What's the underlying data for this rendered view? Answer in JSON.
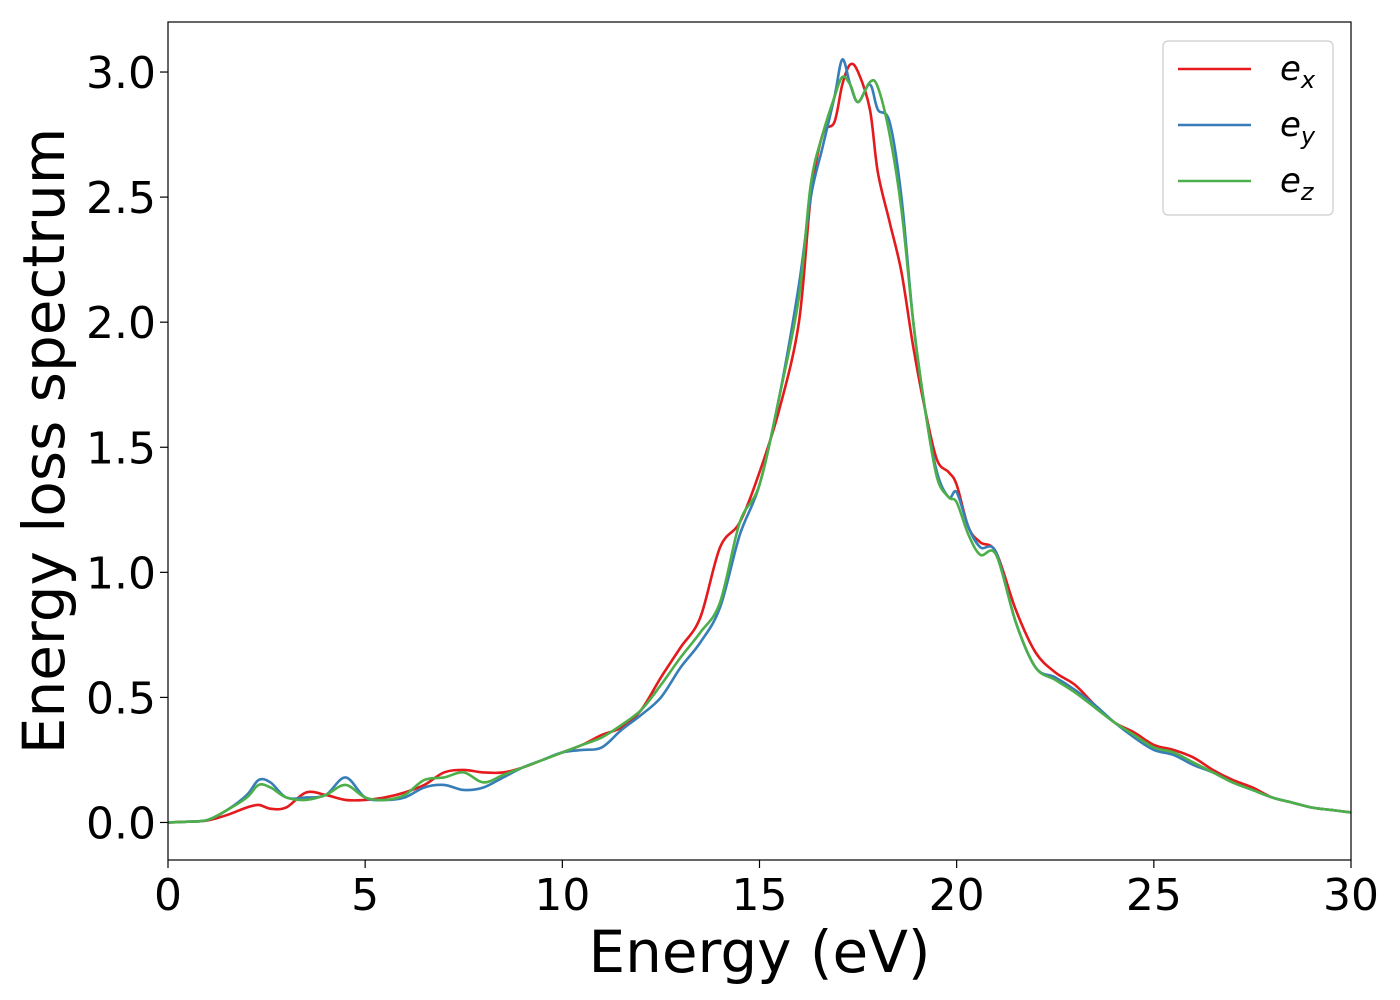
{
  "chart_data": {
    "type": "line",
    "title": "",
    "xlabel": "Energy (eV)",
    "ylabel": "Energy loss spectrum",
    "xlim": [
      0,
      30
    ],
    "ylim": [
      -0.15,
      3.2
    ],
    "xticks": [
      0,
      5,
      10,
      15,
      20,
      25,
      30
    ],
    "yticks": [
      0.0,
      0.5,
      1.0,
      1.5,
      2.0,
      2.5,
      3.0
    ],
    "xtick_labels": [
      "0",
      "5",
      "10",
      "15",
      "20",
      "25",
      "30"
    ],
    "ytick_labels": [
      "0.0",
      "0.5",
      "1.0",
      "1.5",
      "2.0",
      "2.5",
      "3.0"
    ],
    "grid": false,
    "legend_position": "top-right",
    "series": [
      {
        "name": "e_x",
        "legend_base": "e",
        "legend_sub": "x",
        "color": "#e41a1c",
        "x": [
          0,
          0.5,
          1,
          1.5,
          2,
          2.3,
          2.6,
          3,
          3.5,
          4,
          4.5,
          5,
          5.5,
          6,
          6.5,
          7,
          7.5,
          8,
          8.5,
          9,
          9.5,
          10,
          10.5,
          11,
          11.5,
          12,
          12.5,
          13,
          13.5,
          14,
          14.5,
          15,
          15.5,
          16,
          16.3,
          16.6,
          16.9,
          17.1,
          17.3,
          17.5,
          17.8,
          18,
          18.3,
          18.6,
          18.9,
          19.2,
          19.5,
          19.8,
          20,
          20.3,
          20.6,
          21,
          21.5,
          22,
          22.5,
          23,
          23.5,
          24,
          24.5,
          25,
          25.5,
          26,
          26.5,
          27,
          27.5,
          28,
          28.5,
          29,
          29.5,
          30
        ],
        "y": [
          0,
          0.003,
          0.008,
          0.03,
          0.06,
          0.07,
          0.055,
          0.06,
          0.12,
          0.11,
          0.09,
          0.09,
          0.1,
          0.12,
          0.15,
          0.2,
          0.21,
          0.2,
          0.2,
          0.22,
          0.25,
          0.28,
          0.31,
          0.35,
          0.38,
          0.45,
          0.58,
          0.7,
          0.82,
          1.1,
          1.2,
          1.4,
          1.65,
          2.0,
          2.5,
          2.75,
          2.8,
          2.95,
          3.03,
          3.0,
          2.85,
          2.6,
          2.4,
          2.2,
          1.9,
          1.65,
          1.45,
          1.4,
          1.35,
          1.18,
          1.12,
          1.08,
          0.85,
          0.68,
          0.6,
          0.55,
          0.47,
          0.4,
          0.36,
          0.31,
          0.29,
          0.26,
          0.21,
          0.17,
          0.14,
          0.1,
          0.08,
          0.06,
          0.05,
          0.04
        ]
      },
      {
        "name": "e_y",
        "legend_base": "e",
        "legend_sub": "y",
        "color": "#377eb8",
        "x": [
          0,
          0.5,
          1,
          1.5,
          2,
          2.3,
          2.6,
          3,
          3.5,
          4,
          4.5,
          5,
          5.5,
          6,
          6.5,
          7,
          7.5,
          8,
          8.5,
          9,
          9.5,
          10,
          10.5,
          11,
          11.5,
          12,
          12.5,
          13,
          13.5,
          14,
          14.5,
          15,
          15.5,
          16,
          16.3,
          16.6,
          16.9,
          17.1,
          17.3,
          17.5,
          17.8,
          18,
          18.3,
          18.6,
          18.9,
          19.2,
          19.5,
          19.8,
          20,
          20.3,
          20.6,
          21,
          21.5,
          22,
          22.5,
          23,
          23.5,
          24,
          24.5,
          25,
          25.5,
          26,
          26.5,
          27,
          27.5,
          28,
          28.5,
          29,
          29.5,
          30
        ],
        "y": [
          0,
          0.003,
          0.01,
          0.05,
          0.11,
          0.17,
          0.16,
          0.1,
          0.1,
          0.11,
          0.18,
          0.1,
          0.09,
          0.1,
          0.14,
          0.15,
          0.13,
          0.14,
          0.18,
          0.22,
          0.25,
          0.28,
          0.29,
          0.3,
          0.37,
          0.43,
          0.5,
          0.62,
          0.72,
          0.86,
          1.15,
          1.35,
          1.7,
          2.15,
          2.5,
          2.7,
          2.9,
          3.05,
          2.95,
          2.88,
          2.95,
          2.85,
          2.8,
          2.5,
          2.0,
          1.65,
          1.4,
          1.3,
          1.32,
          1.18,
          1.1,
          1.08,
          0.8,
          0.62,
          0.58,
          0.53,
          0.47,
          0.4,
          0.34,
          0.29,
          0.27,
          0.23,
          0.2,
          0.16,
          0.13,
          0.1,
          0.08,
          0.06,
          0.05,
          0.04
        ]
      },
      {
        "name": "e_z",
        "legend_base": "e",
        "legend_sub": "z",
        "color": "#4daf4a",
        "x": [
          0,
          0.5,
          1,
          1.5,
          2,
          2.3,
          2.6,
          3,
          3.5,
          4,
          4.5,
          5,
          5.5,
          6,
          6.5,
          7,
          7.5,
          8,
          8.5,
          9,
          9.5,
          10,
          10.5,
          11,
          11.5,
          12,
          12.5,
          13,
          13.5,
          14,
          14.5,
          15,
          15.5,
          16,
          16.3,
          16.6,
          16.9,
          17.1,
          17.3,
          17.5,
          17.8,
          18,
          18.3,
          18.6,
          18.9,
          19.2,
          19.5,
          19.8,
          20,
          20.3,
          20.6,
          21,
          21.5,
          22,
          22.5,
          23,
          23.5,
          24,
          24.5,
          25,
          25.5,
          26,
          26.5,
          27,
          27.5,
          28,
          28.5,
          29,
          29.5,
          30
        ],
        "y": [
          0,
          0.003,
          0.01,
          0.05,
          0.1,
          0.15,
          0.14,
          0.1,
          0.09,
          0.11,
          0.15,
          0.1,
          0.09,
          0.11,
          0.17,
          0.18,
          0.2,
          0.16,
          0.19,
          0.22,
          0.25,
          0.28,
          0.31,
          0.34,
          0.39,
          0.45,
          0.55,
          0.66,
          0.76,
          0.88,
          1.2,
          1.35,
          1.7,
          2.1,
          2.55,
          2.75,
          2.9,
          2.98,
          2.95,
          2.88,
          2.96,
          2.94,
          2.75,
          2.45,
          2.0,
          1.65,
          1.38,
          1.3,
          1.28,
          1.15,
          1.07,
          1.07,
          0.8,
          0.62,
          0.57,
          0.52,
          0.46,
          0.4,
          0.35,
          0.3,
          0.28,
          0.24,
          0.2,
          0.16,
          0.13,
          0.1,
          0.08,
          0.06,
          0.05,
          0.04
        ]
      }
    ]
  }
}
